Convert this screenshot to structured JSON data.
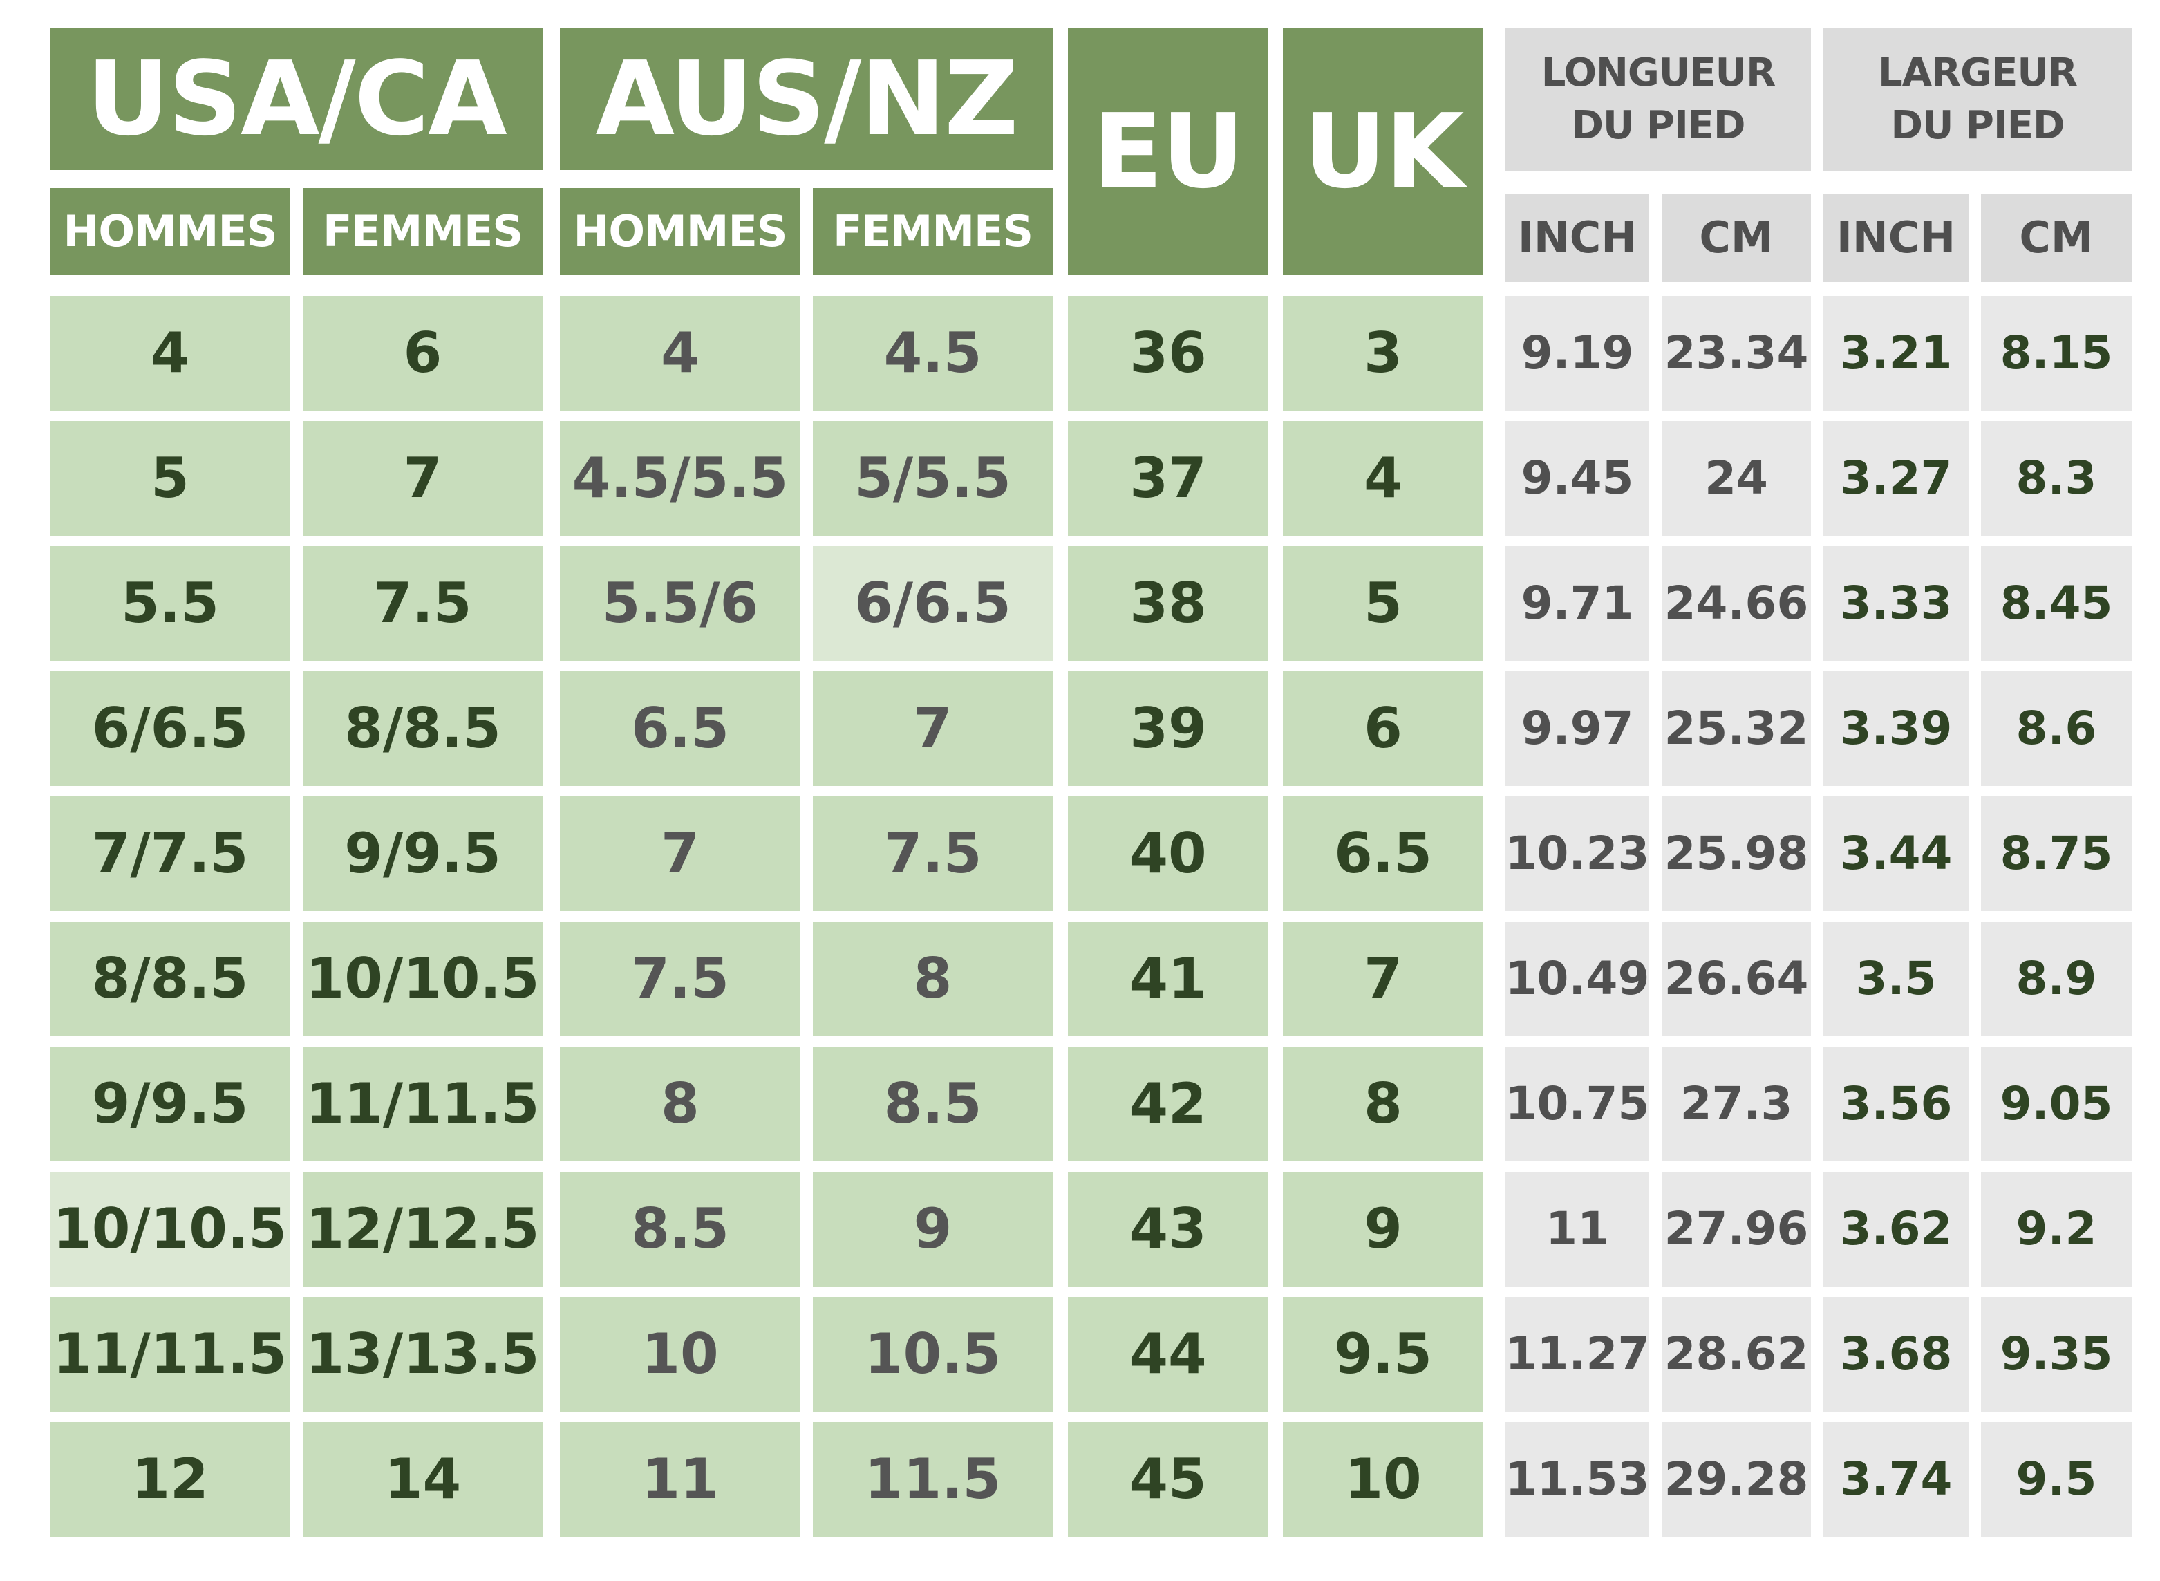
{
  "headers": {
    "usa_ca": "USA/CA",
    "aus_nz": "AUS/NZ",
    "eu": "EU",
    "uk": "UK",
    "hommes": "HOMMES",
    "femmes": "FEMMES",
    "longueur": "LONGUEUR DU PIED",
    "largeur": "LARGEUR DU PIED",
    "inch": "INCH",
    "cm": "CM"
  },
  "rows": [
    {
      "usa_m": "4",
      "usa_f": "6",
      "aus_m": "4",
      "aus_f": "4.5",
      "eu": "36",
      "uk": "3",
      "len_in": "9.19",
      "len_cm": "23.34",
      "wid_in": "3.21",
      "wid_cm": "8.15"
    },
    {
      "usa_m": "5",
      "usa_f": "7",
      "aus_m": "4.5/5.5",
      "aus_f": "5/5.5",
      "eu": "37",
      "uk": "4",
      "len_in": "9.45",
      "len_cm": "24",
      "wid_in": "3.27",
      "wid_cm": "8.3"
    },
    {
      "usa_m": "5.5",
      "usa_f": "7.5",
      "aus_m": "5.5/6",
      "aus_f": "6/6.5",
      "eu": "38",
      "uk": "5",
      "len_in": "9.71",
      "len_cm": "24.66",
      "wid_in": "3.33",
      "wid_cm": "8.45"
    },
    {
      "usa_m": "6/6.5",
      "usa_f": "8/8.5",
      "aus_m": "6.5",
      "aus_f": "7",
      "eu": "39",
      "uk": "6",
      "len_in": "9.97",
      "len_cm": "25.32",
      "wid_in": "3.39",
      "wid_cm": "8.6"
    },
    {
      "usa_m": "7/7.5",
      "usa_f": "9/9.5",
      "aus_m": "7",
      "aus_f": "7.5",
      "eu": "40",
      "uk": "6.5",
      "len_in": "10.23",
      "len_cm": "25.98",
      "wid_in": "3.44",
      "wid_cm": "8.75"
    },
    {
      "usa_m": "8/8.5",
      "usa_f": "10/10.5",
      "aus_m": "7.5",
      "aus_f": "8",
      "eu": "41",
      "uk": "7",
      "len_in": "10.49",
      "len_cm": "26.64",
      "wid_in": "3.5",
      "wid_cm": "8.9"
    },
    {
      "usa_m": "9/9.5",
      "usa_f": "11/11.5",
      "aus_m": "8",
      "aus_f": "8.5",
      "eu": "42",
      "uk": "8",
      "len_in": "10.75",
      "len_cm": "27.3",
      "wid_in": "3.56",
      "wid_cm": "9.05"
    },
    {
      "usa_m": "10/10.5",
      "usa_f": "12/12.5",
      "aus_m": "8.5",
      "aus_f": "9",
      "eu": "43",
      "uk": "9",
      "len_in": "11",
      "len_cm": "27.96",
      "wid_in": "3.62",
      "wid_cm": "9.2"
    },
    {
      "usa_m": "11/11.5",
      "usa_f": "13/13.5",
      "aus_m": "10",
      "aus_f": "10.5",
      "eu": "44",
      "uk": "9.5",
      "len_in": "11.27",
      "len_cm": "28.62",
      "wid_in": "3.68",
      "wid_cm": "9.35"
    },
    {
      "usa_m": "12",
      "usa_f": "14",
      "aus_m": "11",
      "aus_f": "11.5",
      "eu": "45",
      "uk": "10",
      "len_in": "11.53",
      "len_cm": "29.28",
      "wid_in": "3.74",
      "wid_cm": "9.5"
    }
  ],
  "colors": {
    "header_green": "#78965e",
    "cell_green": "#c8ddbc",
    "cell_grey": "#e8e8e8",
    "header_grey": "#dcdcdc",
    "text_dark_green": "#2f4424",
    "text_grey": "#555555"
  }
}
